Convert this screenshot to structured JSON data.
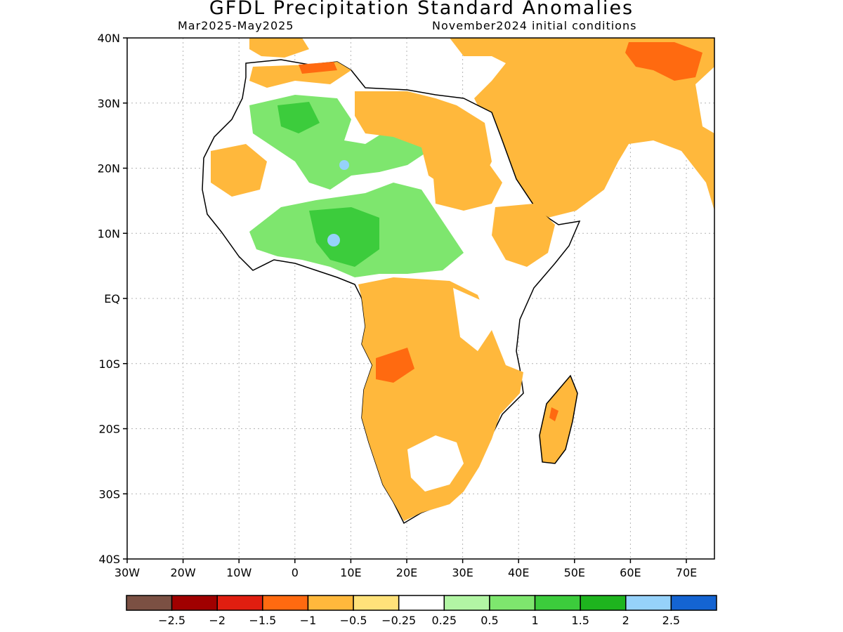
{
  "title": "GFDL Precipitation Standard Anomalies",
  "period": "Mar2025-May2025",
  "init": "November2024 initial conditions",
  "axes": {
    "y_ticks": [
      "40N",
      "30N",
      "20N",
      "10N",
      "EQ",
      "10S",
      "20S",
      "30S",
      "40S"
    ],
    "x_ticks": [
      "30W",
      "20W",
      "10W",
      "0",
      "10E",
      "20E",
      "30E",
      "40E",
      "50E",
      "60E",
      "70E"
    ]
  },
  "colorbar": {
    "colors": [
      "#7b5043",
      "#a00000",
      "#e01e10",
      "#ff6a10",
      "#ffb83c",
      "#ffe27a",
      "#ffffff",
      "#b2f5a4",
      "#7ee66e",
      "#3ccc3c",
      "#1eb41e",
      "#96d2fa",
      "#1464d2"
    ],
    "labels": [
      "-2.5",
      "-2",
      "-1.5",
      "-1",
      "-0.5",
      "-0.25",
      "0.25",
      "0.5",
      "1",
      "1.5",
      "2",
      "2.5"
    ]
  }
}
